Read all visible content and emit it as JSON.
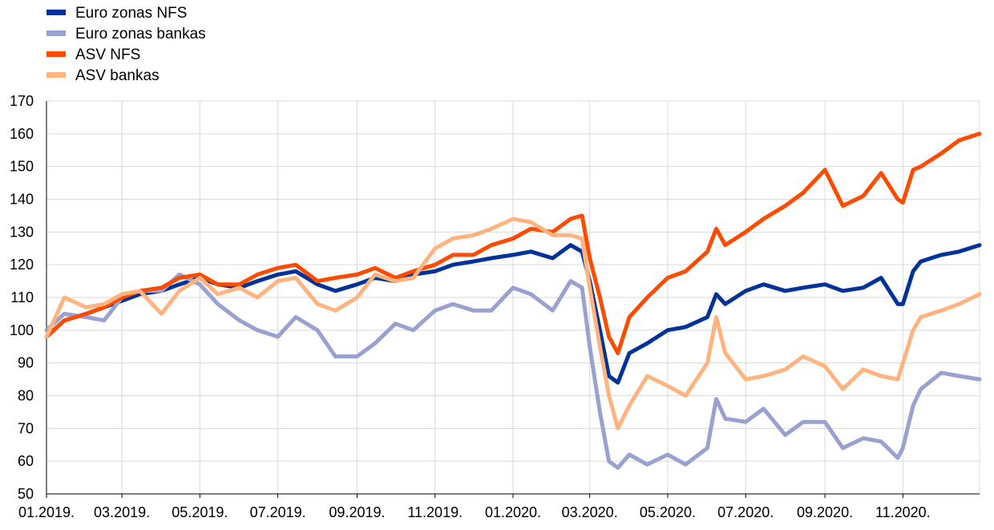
{
  "chart_data": {
    "type": "line",
    "title": "",
    "xlabel": "",
    "ylabel": "",
    "ylim": [
      50,
      170
    ],
    "y_ticks": [
      50,
      60,
      70,
      80,
      90,
      100,
      110,
      120,
      130,
      140,
      150,
      160,
      170
    ],
    "x_range": [
      "2019-01-01",
      "2020-12-31"
    ],
    "x_ticks": [
      {
        "date": "2019-01-01",
        "label": "01.2019."
      },
      {
        "date": "2019-03-01",
        "label": "03.2019."
      },
      {
        "date": "2019-05-01",
        "label": "05.2019."
      },
      {
        "date": "2019-07-01",
        "label": "07.2019."
      },
      {
        "date": "2019-09-01",
        "label": "09.2019."
      },
      {
        "date": "2019-11-01",
        "label": "11.2019."
      },
      {
        "date": "2020-01-01",
        "label": "01.2020."
      },
      {
        "date": "2020-03-01",
        "label": "03.2020."
      },
      {
        "date": "2020-05-01",
        "label": "05.2020."
      },
      {
        "date": "2020-07-01",
        "label": "07.2020."
      },
      {
        "date": "2020-09-01",
        "label": "09.2020."
      },
      {
        "date": "2020-11-01",
        "label": "11.2020."
      }
    ],
    "grid": true,
    "legend_position": "top-left",
    "series": [
      {
        "name": "Euro zonas NFS",
        "color": "#003299",
        "points": [
          [
            "2019-01-01",
            98
          ],
          [
            "2019-01-15",
            103
          ],
          [
            "2019-02-01",
            105
          ],
          [
            "2019-02-15",
            107
          ],
          [
            "2019-03-01",
            109
          ],
          [
            "2019-03-15",
            111
          ],
          [
            "2019-04-01",
            112
          ],
          [
            "2019-04-15",
            114
          ],
          [
            "2019-05-01",
            116
          ],
          [
            "2019-05-15",
            114
          ],
          [
            "2019-06-01",
            113
          ],
          [
            "2019-06-15",
            115
          ],
          [
            "2019-07-01",
            117
          ],
          [
            "2019-07-15",
            118
          ],
          [
            "2019-08-01",
            114
          ],
          [
            "2019-08-15",
            112
          ],
          [
            "2019-09-01",
            114
          ],
          [
            "2019-09-15",
            116
          ],
          [
            "2019-10-01",
            115
          ],
          [
            "2019-10-15",
            117
          ],
          [
            "2019-11-01",
            118
          ],
          [
            "2019-11-15",
            120
          ],
          [
            "2019-12-01",
            121
          ],
          [
            "2019-12-15",
            122
          ],
          [
            "2020-01-01",
            123
          ],
          [
            "2020-01-15",
            124
          ],
          [
            "2020-02-01",
            122
          ],
          [
            "2020-02-15",
            126
          ],
          [
            "2020-02-24",
            124
          ],
          [
            "2020-03-01",
            115
          ],
          [
            "2020-03-09",
            100
          ],
          [
            "2020-03-16",
            86
          ],
          [
            "2020-03-23",
            84
          ],
          [
            "2020-04-01",
            93
          ],
          [
            "2020-04-15",
            96
          ],
          [
            "2020-05-01",
            100
          ],
          [
            "2020-05-15",
            101
          ],
          [
            "2020-06-01",
            104
          ],
          [
            "2020-06-08",
            111
          ],
          [
            "2020-06-15",
            108
          ],
          [
            "2020-07-01",
            112
          ],
          [
            "2020-07-15",
            114
          ],
          [
            "2020-08-01",
            112
          ],
          [
            "2020-08-15",
            113
          ],
          [
            "2020-09-01",
            114
          ],
          [
            "2020-09-15",
            112
          ],
          [
            "2020-10-01",
            113
          ],
          [
            "2020-10-15",
            116
          ],
          [
            "2020-10-28",
            108
          ],
          [
            "2020-11-01",
            108
          ],
          [
            "2020-11-09",
            118
          ],
          [
            "2020-11-15",
            121
          ],
          [
            "2020-12-01",
            123
          ],
          [
            "2020-12-15",
            124
          ],
          [
            "2020-12-31",
            126
          ]
        ]
      },
      {
        "name": "Euro zonas bankas",
        "color": "#98a1d0",
        "points": [
          [
            "2019-01-01",
            100
          ],
          [
            "2019-01-15",
            105
          ],
          [
            "2019-02-01",
            104
          ],
          [
            "2019-02-15",
            103
          ],
          [
            "2019-03-01",
            110
          ],
          [
            "2019-03-15",
            112
          ],
          [
            "2019-04-01",
            112
          ],
          [
            "2019-04-15",
            117
          ],
          [
            "2019-05-01",
            114
          ],
          [
            "2019-05-15",
            108
          ],
          [
            "2019-06-01",
            103
          ],
          [
            "2019-06-15",
            100
          ],
          [
            "2019-07-01",
            98
          ],
          [
            "2019-07-15",
            104
          ],
          [
            "2019-08-01",
            100
          ],
          [
            "2019-08-15",
            92
          ],
          [
            "2019-09-01",
            92
          ],
          [
            "2019-09-15",
            96
          ],
          [
            "2019-10-01",
            102
          ],
          [
            "2019-10-15",
            100
          ],
          [
            "2019-11-01",
            106
          ],
          [
            "2019-11-15",
            108
          ],
          [
            "2019-12-01",
            106
          ],
          [
            "2019-12-15",
            106
          ],
          [
            "2020-01-01",
            113
          ],
          [
            "2020-01-15",
            111
          ],
          [
            "2020-02-01",
            106
          ],
          [
            "2020-02-15",
            115
          ],
          [
            "2020-02-24",
            113
          ],
          [
            "2020-03-01",
            95
          ],
          [
            "2020-03-09",
            75
          ],
          [
            "2020-03-16",
            60
          ],
          [
            "2020-03-23",
            58
          ],
          [
            "2020-04-01",
            62
          ],
          [
            "2020-04-15",
            59
          ],
          [
            "2020-05-01",
            62
          ],
          [
            "2020-05-15",
            59
          ],
          [
            "2020-06-01",
            64
          ],
          [
            "2020-06-08",
            79
          ],
          [
            "2020-06-15",
            73
          ],
          [
            "2020-07-01",
            72
          ],
          [
            "2020-07-15",
            76
          ],
          [
            "2020-08-01",
            68
          ],
          [
            "2020-08-15",
            72
          ],
          [
            "2020-09-01",
            72
          ],
          [
            "2020-09-15",
            64
          ],
          [
            "2020-10-01",
            67
          ],
          [
            "2020-10-15",
            66
          ],
          [
            "2020-10-28",
            61
          ],
          [
            "2020-11-01",
            64
          ],
          [
            "2020-11-09",
            77
          ],
          [
            "2020-11-15",
            82
          ],
          [
            "2020-12-01",
            87
          ],
          [
            "2020-12-15",
            86
          ],
          [
            "2020-12-31",
            85
          ]
        ]
      },
      {
        "name": "ASV NFS",
        "color": "#ff4b00",
        "points": [
          [
            "2019-01-01",
            98
          ],
          [
            "2019-01-15",
            103
          ],
          [
            "2019-02-01",
            105
          ],
          [
            "2019-02-15",
            107
          ],
          [
            "2019-03-01",
            110
          ],
          [
            "2019-03-15",
            112
          ],
          [
            "2019-04-01",
            113
          ],
          [
            "2019-04-15",
            116
          ],
          [
            "2019-05-01",
            117
          ],
          [
            "2019-05-15",
            114
          ],
          [
            "2019-06-01",
            114
          ],
          [
            "2019-06-15",
            117
          ],
          [
            "2019-07-01",
            119
          ],
          [
            "2019-07-15",
            120
          ],
          [
            "2019-08-01",
            115
          ],
          [
            "2019-08-15",
            116
          ],
          [
            "2019-09-01",
            117
          ],
          [
            "2019-09-15",
            119
          ],
          [
            "2019-10-01",
            116
          ],
          [
            "2019-10-15",
            118
          ],
          [
            "2019-11-01",
            120
          ],
          [
            "2019-11-15",
            123
          ],
          [
            "2019-12-01",
            123
          ],
          [
            "2019-12-15",
            126
          ],
          [
            "2020-01-01",
            128
          ],
          [
            "2020-01-15",
            131
          ],
          [
            "2020-02-01",
            130
          ],
          [
            "2020-02-15",
            134
          ],
          [
            "2020-02-24",
            135
          ],
          [
            "2020-03-01",
            122
          ],
          [
            "2020-03-09",
            110
          ],
          [
            "2020-03-16",
            98
          ],
          [
            "2020-03-23",
            93
          ],
          [
            "2020-04-01",
            104
          ],
          [
            "2020-04-15",
            110
          ],
          [
            "2020-05-01",
            116
          ],
          [
            "2020-05-15",
            118
          ],
          [
            "2020-06-01",
            124
          ],
          [
            "2020-06-08",
            131
          ],
          [
            "2020-06-15",
            126
          ],
          [
            "2020-07-01",
            130
          ],
          [
            "2020-07-15",
            134
          ],
          [
            "2020-08-01",
            138
          ],
          [
            "2020-08-15",
            142
          ],
          [
            "2020-09-01",
            149
          ],
          [
            "2020-09-15",
            138
          ],
          [
            "2020-10-01",
            141
          ],
          [
            "2020-10-15",
            148
          ],
          [
            "2020-10-28",
            140
          ],
          [
            "2020-11-01",
            139
          ],
          [
            "2020-11-09",
            149
          ],
          [
            "2020-11-15",
            150
          ],
          [
            "2020-12-01",
            154
          ],
          [
            "2020-12-15",
            158
          ],
          [
            "2020-12-31",
            160
          ]
        ]
      },
      {
        "name": "ASV bankas",
        "color": "#ffb480",
        "points": [
          [
            "2019-01-01",
            98
          ],
          [
            "2019-01-15",
            110
          ],
          [
            "2019-02-01",
            107
          ],
          [
            "2019-02-15",
            108
          ],
          [
            "2019-03-01",
            111
          ],
          [
            "2019-03-15",
            112
          ],
          [
            "2019-04-01",
            105
          ],
          [
            "2019-04-15",
            112
          ],
          [
            "2019-05-01",
            116
          ],
          [
            "2019-05-15",
            111
          ],
          [
            "2019-06-01",
            113
          ],
          [
            "2019-06-15",
            110
          ],
          [
            "2019-07-01",
            115
          ],
          [
            "2019-07-15",
            116
          ],
          [
            "2019-08-01",
            108
          ],
          [
            "2019-08-15",
            106
          ],
          [
            "2019-09-01",
            110
          ],
          [
            "2019-09-15",
            117
          ],
          [
            "2019-10-01",
            115
          ],
          [
            "2019-10-15",
            116
          ],
          [
            "2019-11-01",
            125
          ],
          [
            "2019-11-15",
            128
          ],
          [
            "2019-12-01",
            129
          ],
          [
            "2019-12-15",
            131
          ],
          [
            "2020-01-01",
            134
          ],
          [
            "2020-01-15",
            133
          ],
          [
            "2020-02-01",
            129
          ],
          [
            "2020-02-15",
            129
          ],
          [
            "2020-02-24",
            128
          ],
          [
            "2020-03-01",
            113
          ],
          [
            "2020-03-09",
            95
          ],
          [
            "2020-03-16",
            80
          ],
          [
            "2020-03-23",
            70
          ],
          [
            "2020-04-01",
            77
          ],
          [
            "2020-04-15",
            86
          ],
          [
            "2020-05-01",
            83
          ],
          [
            "2020-05-15",
            80
          ],
          [
            "2020-06-01",
            90
          ],
          [
            "2020-06-08",
            104
          ],
          [
            "2020-06-15",
            93
          ],
          [
            "2020-07-01",
            85
          ],
          [
            "2020-07-15",
            86
          ],
          [
            "2020-08-01",
            88
          ],
          [
            "2020-08-15",
            92
          ],
          [
            "2020-09-01",
            89
          ],
          [
            "2020-09-15",
            82
          ],
          [
            "2020-10-01",
            88
          ],
          [
            "2020-10-15",
            86
          ],
          [
            "2020-10-28",
            85
          ],
          [
            "2020-11-01",
            90
          ],
          [
            "2020-11-09",
            100
          ],
          [
            "2020-11-15",
            104
          ],
          [
            "2020-12-01",
            106
          ],
          [
            "2020-12-15",
            108
          ],
          [
            "2020-12-31",
            111
          ]
        ]
      }
    ]
  }
}
